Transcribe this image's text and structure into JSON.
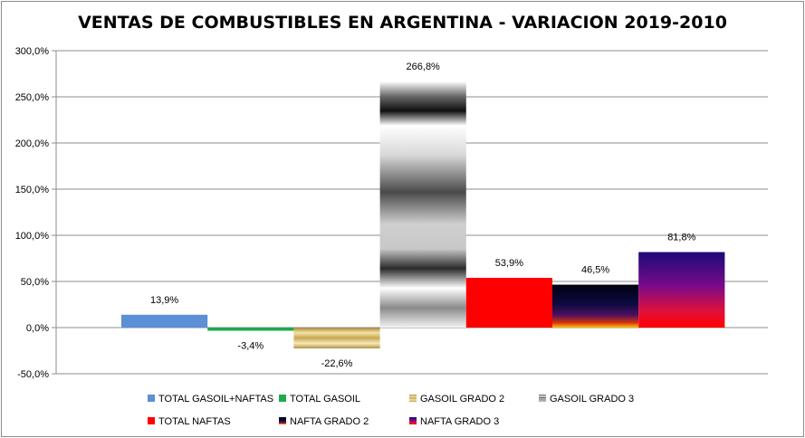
{
  "chart_data": {
    "type": "bar",
    "title": "VENTAS DE COMBUSTIBLES EN ARGENTINA - VARIACION 2019-2010",
    "xlabel": "",
    "ylabel": "",
    "ylim": [
      -50,
      300
    ],
    "ytick_step": 50,
    "ytick_labels": [
      "-50,0%",
      "0,0%",
      "50,0%",
      "100,0%",
      "150,0%",
      "200,0%",
      "250,0%",
      "300,0%"
    ],
    "grid": true,
    "legend_position": "bottom",
    "series": [
      {
        "name": "TOTAL GASOIL+NAFTAS",
        "value": 13.9,
        "label": "13,9%",
        "color": "#5b8fd6",
        "fill": "solid"
      },
      {
        "name": "TOTAL GASOIL",
        "value": -3.4,
        "label": "-3,4%",
        "color": "#1faa4f",
        "fill": "solid"
      },
      {
        "name": "GASOIL GRADO 2",
        "value": -22.6,
        "label": "-22,6%",
        "color": "#d8bf73",
        "fill": "gold"
      },
      {
        "name": "GASOIL GRADO 3",
        "value": 266.8,
        "label": "266,8%",
        "color": "#b0b0b0",
        "fill": "chrome"
      },
      {
        "name": "TOTAL NAFTAS",
        "value": 53.9,
        "label": "53,9%",
        "color": "#ff0000",
        "fill": "solid"
      },
      {
        "name": "NAFTA GRADO 2",
        "value": 46.5,
        "label": "46,5%",
        "color": "#000020",
        "fill": "nightfall"
      },
      {
        "name": "NAFTA GRADO 3",
        "value": 81.8,
        "label": "81,8%",
        "color": "#ff0000",
        "fill": "fire"
      }
    ]
  }
}
